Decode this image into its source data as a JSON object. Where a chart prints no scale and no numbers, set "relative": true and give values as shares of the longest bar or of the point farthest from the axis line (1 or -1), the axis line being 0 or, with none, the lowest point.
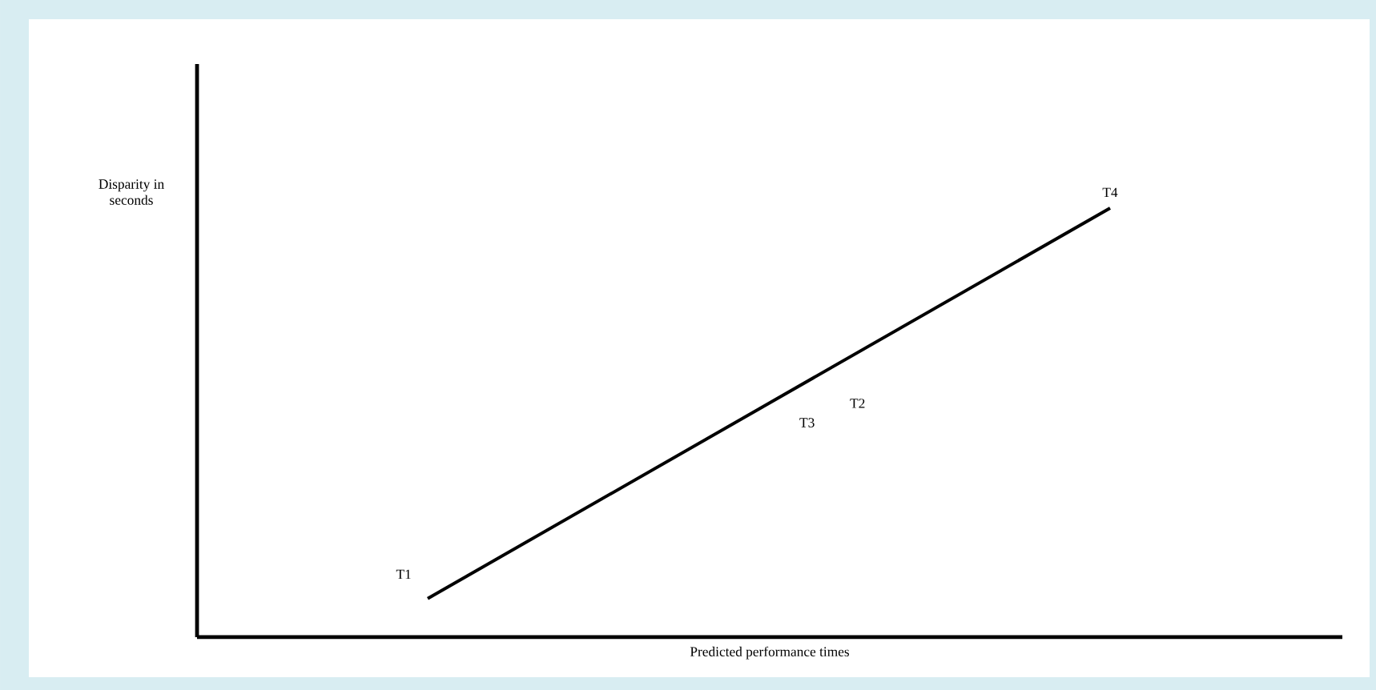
{
  "chart_data": {
    "type": "line",
    "relative": true,
    "xlabel": "Predicted performance times",
    "ylabel": "Disparity in seconds",
    "categories": [
      null,
      null
    ],
    "values": [
      0.09,
      1
    ],
    "color": "#000000",
    "annotations": [
      "T1",
      "T3",
      "T2",
      "T4"
    ]
  }
}
